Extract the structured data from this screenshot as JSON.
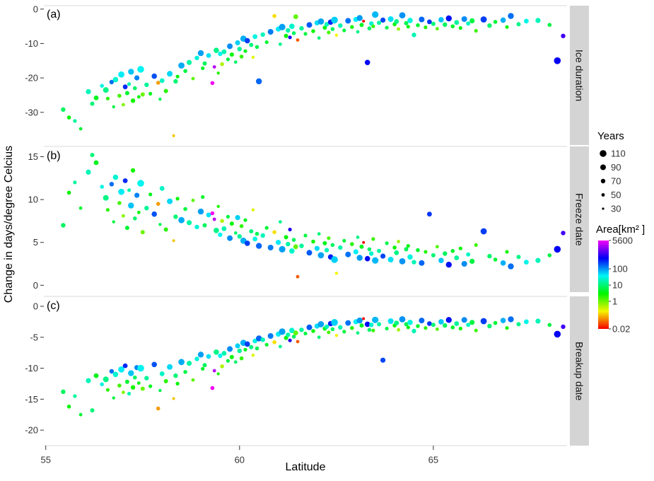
{
  "figure": {
    "ylabel": "Change in days/degree Celcius",
    "xlabel": "Latitude"
  },
  "legend": {
    "years_title": "Years",
    "years_values": [
      110,
      90,
      70,
      50,
      30
    ],
    "area_title": "Area[km² ]",
    "area_ticks": [
      5600,
      100,
      10,
      1,
      0.02
    ],
    "area_tick_labels": [
      "5600",
      "100",
      "10",
      "1",
      "0.02"
    ]
  },
  "chart_data": {
    "type": "scatter",
    "title": "",
    "xlabel": "Latitude",
    "ylabel": "Change in days/degree Celcius",
    "xlim": [
      54.95,
      68.45
    ],
    "xticks": [
      55,
      60,
      65
    ],
    "grid": "off",
    "legend_position": "right",
    "color_scale": {
      "variable": "area_km2",
      "type": "log",
      "domain": [
        0.02,
        5600
      ],
      "palette": "rainbow red-to-magenta"
    },
    "size_scale": {
      "variable": "years",
      "domain": [
        30,
        110
      ]
    },
    "panels": [
      {
        "letter": "(a)",
        "strip": "Ice duration",
        "ylim": [
          -39.5,
          1.0
        ],
        "yticks": [
          0,
          -10,
          -20,
          -30
        ]
      },
      {
        "letter": "(b)",
        "strip": "Freeze date",
        "ylim": [
          -0.8,
          16.2
        ],
        "yticks": [
          15,
          10,
          5,
          0
        ]
      },
      {
        "letter": "(c)",
        "strip": "Breakup date",
        "ylim": [
          -22.5,
          1.6
        ],
        "yticks": [
          0,
          -5,
          -10,
          -15,
          -20
        ]
      }
    ],
    "points_format": [
      "latitude",
      "years",
      "area_km2",
      "ice_duration",
      "freeze_date",
      "breakup_date"
    ],
    "points": [
      [
        55.45,
        70,
        8,
        -29.2,
        7.0,
        -13.8
      ],
      [
        55.6,
        60,
        3,
        -31.5,
        10.8,
        -16.2
      ],
      [
        55.75,
        55,
        15,
        -32.5,
        12.0,
        -14.5
      ],
      [
        55.9,
        50,
        5,
        -34.8,
        9.0,
        -17.5
      ],
      [
        56.1,
        80,
        20,
        -24.0,
        13.2,
        -12.0
      ],
      [
        56.2,
        65,
        10,
        -27.5,
        15.2,
        -16.8
      ],
      [
        56.3,
        75,
        4,
        -25.8,
        14.3,
        -11.2
      ],
      [
        56.45,
        60,
        30,
        -22.3,
        11.5,
        -12.6
      ],
      [
        56.55,
        90,
        12,
        -23.5,
        10.2,
        -11.8
      ],
      [
        56.6,
        55,
        2,
        -26.0,
        8.8,
        -13.5
      ],
      [
        56.7,
        70,
        150,
        -21.2,
        11.8,
        -10.5
      ],
      [
        56.75,
        45,
        6,
        -28.4,
        7.4,
        -14.8
      ],
      [
        56.8,
        85,
        25,
        -20.5,
        12.6,
        -11.0
      ],
      [
        56.9,
        60,
        1.5,
        -25.2,
        9.6,
        -12.8
      ],
      [
        56.95,
        100,
        40,
        -19.0,
        10.9,
        -10.2
      ],
      [
        57.0,
        50,
        0.8,
        -27.8,
        8.1,
        -13.9
      ],
      [
        57.05,
        75,
        300,
        -22.6,
        12.2,
        -9.6
      ],
      [
        57.1,
        65,
        5,
        -24.4,
        6.7,
        -12.2
      ],
      [
        57.15,
        55,
        18,
        -21.8,
        11.1,
        -14.1
      ],
      [
        57.2,
        95,
        60,
        -18.2,
        9.3,
        -10.8
      ],
      [
        57.25,
        70,
        2.5,
        -26.6,
        13.4,
        -13.1
      ],
      [
        57.3,
        60,
        9,
        -23.0,
        7.8,
        -11.5
      ],
      [
        57.35,
        80,
        120,
        -20.0,
        10.5,
        -9.9
      ],
      [
        57.4,
        50,
        3.5,
        -25.5,
        8.5,
        -12.4
      ],
      [
        57.45,
        110,
        35,
        -17.5,
        11.9,
        -10.0
      ],
      [
        57.5,
        65,
        1,
        -24.8,
        6.2,
        -13.3
      ],
      [
        57.6,
        70,
        14,
        -22.0,
        9.0,
        -11.6
      ],
      [
        57.7,
        55,
        4,
        -24.6,
        10.6,
        -12.9
      ],
      [
        57.8,
        85,
        200,
        -19.5,
        8.3,
        -9.4
      ],
      [
        57.9,
        60,
        0.1,
        -21.4,
        9.5,
        -16.5
      ],
      [
        57.95,
        45,
        7,
        -26.2,
        7.1,
        -13.6
      ],
      [
        58.0,
        75,
        22,
        -20.8,
        11.3,
        -10.9
      ],
      [
        58.1,
        65,
        2,
        -23.8,
        6.5,
        -12.1
      ],
      [
        58.2,
        90,
        50,
        -18.8,
        9.8,
        -9.8
      ],
      [
        58.3,
        40,
        0.15,
        -36.8,
        5.2,
        -14.9
      ],
      [
        58.35,
        70,
        10,
        -21.0,
        8.0,
        -11.2
      ],
      [
        58.4,
        55,
        3,
        -19.6,
        10.1,
        -12.5
      ],
      [
        58.5,
        100,
        80,
        -16.4,
        7.6,
        -9.0
      ],
      [
        58.6,
        60,
        6,
        -18.0,
        8.9,
        -10.6
      ],
      [
        58.7,
        80,
        16,
        -15.5,
        7.3,
        -9.2
      ],
      [
        58.8,
        50,
        1.2,
        -20.2,
        9.9,
        -11.9
      ],
      [
        58.9,
        70,
        28,
        -14.2,
        6.8,
        -8.5
      ],
      [
        59.0,
        95,
        90,
        -12.8,
        8.6,
        -7.8
      ],
      [
        59.05,
        55,
        4.5,
        -17.2,
        10.3,
        -10.1
      ],
      [
        59.1,
        65,
        8,
        -15.8,
        7.0,
        -9.5
      ],
      [
        59.2,
        75,
        45,
        -13.5,
        8.2,
        -8.1
      ],
      [
        59.3,
        60,
        5600,
        -21.5,
        8.4,
        -13.2
      ],
      [
        59.35,
        50,
        3000,
        -16.8,
        7.7,
        -10.4
      ],
      [
        59.4,
        85,
        12,
        -12.0,
        6.4,
        -7.4
      ],
      [
        59.45,
        45,
        2.2,
        -18.6,
        9.2,
        -10.9
      ],
      [
        59.5,
        70,
        35,
        -13.0,
        5.9,
        -8.0
      ],
      [
        59.55,
        60,
        0.5,
        -16.0,
        7.5,
        -9.7
      ],
      [
        59.6,
        75,
        18,
        -12.4,
        6.6,
        -7.6
      ],
      [
        59.7,
        55,
        6,
        -14.6,
        8.0,
        -8.8
      ],
      [
        59.75,
        90,
        110,
        -10.8,
        5.5,
        -6.9
      ],
      [
        59.8,
        65,
        2.8,
        -13.2,
        7.2,
        -8.2
      ],
      [
        59.9,
        50,
        9,
        -15.4,
        6.1,
        -9.0
      ],
      [
        59.95,
        80,
        55,
        -9.8,
        7.9,
        -6.4
      ],
      [
        60.0,
        70,
        14,
        -11.6,
        5.7,
        -7.2
      ],
      [
        60.05,
        60,
        1.8,
        -13.8,
        6.9,
        -8.4
      ],
      [
        60.1,
        100,
        75,
        -8.6,
        5.2,
        -5.9
      ],
      [
        60.15,
        55,
        4,
        -12.2,
        7.6,
        -7.0
      ],
      [
        60.2,
        85,
        240,
        -9.2,
        4.9,
        -6.1
      ],
      [
        60.3,
        65,
        11,
        -10.4,
        6.3,
        -6.6
      ],
      [
        60.35,
        45,
        0.3,
        -14.0,
        8.8,
        -7.9
      ],
      [
        60.4,
        75,
        30,
        -8.0,
        5.4,
        -5.6
      ],
      [
        60.45,
        60,
        7,
        -11.0,
        6.0,
        -6.8
      ],
      [
        60.5,
        95,
        160,
        -21.0,
        4.6,
        -5.2
      ],
      [
        60.6,
        70,
        20,
        -7.4,
        5.8,
        -5.4
      ],
      [
        60.7,
        55,
        5,
        -9.6,
        6.7,
        -6.2
      ],
      [
        60.8,
        90,
        130,
        -6.6,
        4.4,
        -4.8
      ],
      [
        60.9,
        60,
        0.2,
        -2.0,
        6.2,
        -5.8
      ],
      [
        61.0,
        80,
        42,
        -5.8,
        5.0,
        -4.5
      ],
      [
        61.05,
        50,
        13,
        -10.2,
        7.4,
        -6.5
      ],
      [
        61.1,
        105,
        90,
        -5.2,
        4.2,
        -4.1
      ],
      [
        61.2,
        65,
        3.2,
        -7.8,
        5.6,
        -5.1
      ],
      [
        61.25,
        70,
        17,
        -6.2,
        4.8,
        -4.6
      ],
      [
        61.3,
        55,
        650,
        -8.2,
        6.5,
        -5.5
      ],
      [
        61.35,
        85,
        24,
        -5.0,
        4.0,
        -3.9
      ],
      [
        61.4,
        60,
        8,
        -7.0,
        5.3,
        -4.9
      ],
      [
        61.45,
        75,
        1.1,
        -2.2,
        4.5,
        -4.3
      ],
      [
        61.5,
        50,
        0.05,
        -9.0,
        1.0,
        -5.7
      ],
      [
        61.6,
        70,
        15,
        -5.6,
        4.6,
        -3.8
      ],
      [
        61.7,
        55,
        6,
        -7.2,
        5.8,
        -4.4
      ],
      [
        61.8,
        90,
        180,
        -4.6,
        3.8,
        -3.4
      ],
      [
        61.9,
        60,
        2.6,
        -6.4,
        5.1,
        -4.0
      ],
      [
        62.0,
        80,
        48,
        -4.0,
        4.3,
        -3.2
      ],
      [
        62.05,
        50,
        10,
        -8.4,
        6.0,
        -5.0
      ],
      [
        62.1,
        100,
        85,
        -3.6,
        3.5,
        -2.9
      ],
      [
        62.2,
        65,
        3.8,
        -5.4,
        4.9,
        -3.6
      ],
      [
        62.25,
        70,
        21,
        -4.4,
        4.1,
        -3.3
      ],
      [
        62.3,
        55,
        1.4,
        -6.8,
        5.5,
        -4.2
      ],
      [
        62.35,
        85,
        320,
        -3.8,
        3.3,
        -2.8
      ],
      [
        62.4,
        60,
        8.5,
        -5.8,
        4.7,
        -3.7
      ],
      [
        62.45,
        110,
        55,
        -3.2,
        3.0,
        -2.6
      ],
      [
        62.5,
        45,
        0.25,
        -7.6,
        1.4,
        -4.7
      ],
      [
        62.6,
        70,
        18,
        -4.8,
        4.4,
        -3.4
      ],
      [
        62.7,
        55,
        5.5,
        -6.2,
        5.2,
        -4.1
      ],
      [
        62.8,
        90,
        140,
        -3.4,
        3.6,
        -2.7
      ],
      [
        62.9,
        60,
        2.1,
        -5.2,
        4.8,
        -3.5
      ],
      [
        63.0,
        80,
        38,
        -3.0,
        3.9,
        -2.5
      ],
      [
        63.05,
        50,
        12,
        -6.6,
        5.6,
        -4.3
      ],
      [
        63.1,
        95,
        95,
        -2.6,
        3.2,
        -2.3
      ],
      [
        63.15,
        65,
        4.2,
        -4.6,
        4.5,
        -3.1
      ],
      [
        63.2,
        40,
        0.02,
        -3.5,
        5.0,
        -2.0
      ],
      [
        63.3,
        85,
        420,
        -15.5,
        3.1,
        -2.9
      ],
      [
        63.35,
        60,
        9,
        -5.6,
        4.2,
        -3.8
      ],
      [
        63.4,
        70,
        26,
        -4.2,
        3.7,
        -3.0
      ],
      [
        63.45,
        55,
        1.7,
        -5.0,
        5.4,
        -3.9
      ],
      [
        63.5,
        105,
        70,
        -1.6,
        2.9,
        -2.2
      ],
      [
        63.6,
        65,
        16,
        -4.0,
        4.0,
        -2.9
      ],
      [
        63.7,
        80,
        220,
        -3.2,
        3.4,
        -8.7
      ],
      [
        63.8,
        55,
        6.5,
        -5.4,
        4.9,
        -3.6
      ],
      [
        63.9,
        90,
        45,
        -2.9,
        3.0,
        -2.4
      ],
      [
        64.0,
        60,
        2.9,
        -4.4,
        4.4,
        -3.1
      ],
      [
        64.05,
        75,
        12,
        -3.6,
        3.8,
        -2.7
      ],
      [
        64.1,
        50,
        0.6,
        -5.8,
        5.1,
        -3.8
      ],
      [
        64.2,
        100,
        100,
        -1.8,
        2.8,
        -2.1
      ],
      [
        64.3,
        65,
        7,
        -4.1,
        4.2,
        -2.9
      ],
      [
        64.35,
        55,
        3.4,
        -5.1,
        4.6,
        -3.4
      ],
      [
        64.4,
        85,
        30,
        -3.3,
        3.3,
        -2.6
      ],
      [
        64.5,
        70,
        19,
        -7.5,
        2.7,
        -4.0
      ],
      [
        64.6,
        60,
        5,
        -4.7,
        4.1,
        -3.2
      ],
      [
        64.7,
        90,
        160,
        -3.0,
        2.6,
        -2.3
      ],
      [
        64.8,
        55,
        2.2,
        -5.3,
        3.9,
        -3.5
      ],
      [
        64.9,
        75,
        260,
        -3.7,
        8.3,
        -2.8
      ],
      [
        65.0,
        65,
        10,
        -4.3,
        3.5,
        -3.0
      ],
      [
        65.1,
        50,
        1.3,
        -5.7,
        4.5,
        -3.7
      ],
      [
        65.2,
        85,
        60,
        -3.1,
        2.9,
        -2.5
      ],
      [
        65.3,
        70,
        8,
        -4.5,
        3.7,
        -3.1
      ],
      [
        65.4,
        95,
        380,
        -2.7,
        2.4,
        -2.2
      ],
      [
        65.5,
        60,
        4.6,
        -5.0,
        4.0,
        -3.4
      ],
      [
        65.6,
        75,
        14,
        -3.9,
        3.2,
        -2.8
      ],
      [
        65.7,
        55,
        3,
        -5.5,
        4.3,
        -3.6
      ],
      [
        65.8,
        90,
        110,
        -2.9,
        2.5,
        -2.2
      ],
      [
        65.9,
        65,
        22,
        -4.2,
        3.6,
        -3.0
      ],
      [
        66.0,
        80,
        6,
        -3.4,
        2.8,
        -2.6
      ],
      [
        66.1,
        55,
        1.6,
        -6.3,
        4.7,
        -3.9
      ],
      [
        66.3,
        100,
        240,
        -3.0,
        6.3,
        -2.4
      ],
      [
        66.45,
        70,
        9,
        -4.8,
        3.4,
        -3.2
      ],
      [
        66.6,
        60,
        5.2,
        -3.7,
        3.0,
        -2.7
      ],
      [
        66.8,
        85,
        75,
        -3.2,
        2.6,
        -2.3
      ],
      [
        66.9,
        55,
        2.5,
        -5.2,
        3.9,
        -3.5
      ],
      [
        67.0,
        95,
        150,
        -2.0,
        2.2,
        -2.1
      ],
      [
        67.2,
        65,
        12,
        -4.4,
        3.3,
        -2.9
      ],
      [
        67.4,
        75,
        33,
        -3.5,
        2.7,
        -2.5
      ],
      [
        67.7,
        80,
        20,
        -3.3,
        2.9,
        -2.4
      ],
      [
        68.0,
        60,
        6,
        -4.6,
        3.5,
        -3.0
      ],
      [
        68.2,
        110,
        480,
        -15.0,
        4.2,
        -4.5
      ],
      [
        68.35,
        70,
        900,
        -7.8,
        6.1,
        -3.3
      ]
    ]
  }
}
